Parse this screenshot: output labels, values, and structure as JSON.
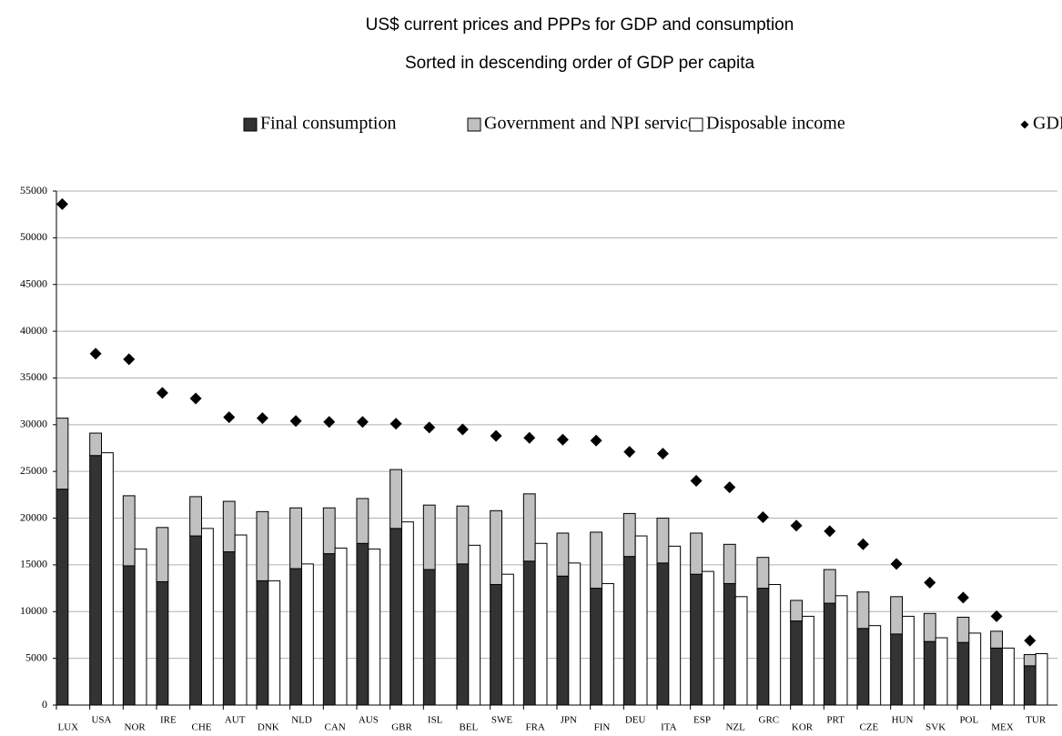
{
  "chart_data": {
    "type": "bar",
    "title": "US$ current prices and PPPs for GDP and consumption",
    "subtitle": "Sorted in descending order of GDP per capita",
    "categories": [
      "LUX",
      "USA",
      "NOR",
      "IRE",
      "CHE",
      "AUT",
      "DNK",
      "NLD",
      "CAN",
      "AUS",
      "GBR",
      "ISL",
      "BEL",
      "SWE",
      "FRA",
      "JPN",
      "FIN",
      "DEU",
      "ITA",
      "ESP",
      "NZL",
      "GRC",
      "KOR",
      "PRT",
      "CZE",
      "HUN",
      "SVK",
      "POL",
      "MEX",
      "TUR"
    ],
    "series": [
      {
        "name": "Final consumption",
        "color": "#333333",
        "type": "bar",
        "stack": "consumption",
        "values": [
          23100,
          26700,
          14900,
          13200,
          18100,
          16400,
          13300,
          14600,
          16200,
          17300,
          18900,
          14500,
          15100,
          12900,
          15400,
          13800,
          12500,
          15900,
          15200,
          14000,
          13000,
          12500,
          9000,
          10900,
          8200,
          7600,
          6800,
          6700,
          6100,
          4200
        ]
      },
      {
        "name": "Government and NPI services",
        "color": "#c0c0c0",
        "type": "bar",
        "stack": "consumption",
        "values": [
          7600,
          2400,
          7500,
          5800,
          4200,
          5400,
          7400,
          6500,
          4900,
          4800,
          6300,
          6900,
          6200,
          7900,
          7200,
          4600,
          6000,
          4600,
          4800,
          4400,
          4200,
          3300,
          2200,
          3600,
          3900,
          4000,
          3000,
          2700,
          1800,
          1200
        ]
      },
      {
        "name": "Disposable income",
        "color": "#ffffff",
        "type": "bar",
        "stack": "income",
        "values": [
          null,
          27000,
          16700,
          null,
          18900,
          18200,
          13300,
          15100,
          16800,
          16700,
          19600,
          null,
          17100,
          14000,
          17300,
          15200,
          13000,
          18100,
          17000,
          14300,
          11600,
          12900,
          9500,
          11700,
          8500,
          9500,
          7200,
          7700,
          6100,
          5500
        ]
      },
      {
        "name": "GDP",
        "color": "#000000",
        "type": "scatter",
        "values": [
          53600,
          37600,
          37000,
          33400,
          32800,
          30800,
          30700,
          30400,
          30300,
          30300,
          30100,
          29700,
          29500,
          28800,
          28600,
          28400,
          28300,
          27100,
          26900,
          24000,
          23300,
          20100,
          19200,
          18600,
          17200,
          15100,
          13100,
          11500,
          9500,
          6900
        ]
      }
    ],
    "ylim": [
      0,
      55000
    ],
    "yticks": [
      0,
      5000,
      10000,
      15000,
      20000,
      25000,
      30000,
      35000,
      40000,
      45000,
      50000,
      55000
    ],
    "grid": true
  }
}
